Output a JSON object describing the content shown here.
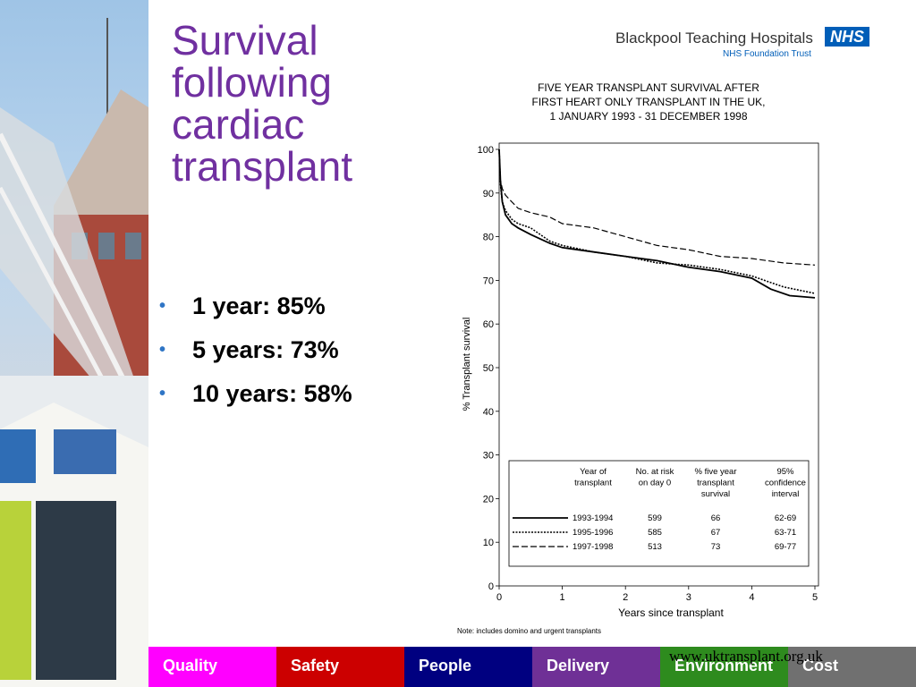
{
  "slide": {
    "title": "Survival following cardiac transplant",
    "bullets": [
      "1 year: 85%",
      "5 years: 73%",
      "10 years: 58%"
    ],
    "bullet_color": "#2f75c5",
    "title_color": "#7030a0"
  },
  "logo": {
    "org": "Blackpool Teaching Hospitals",
    "badge": "NHS",
    "trust": "NHS Foundation Trust",
    "badge_color": "#005eb8"
  },
  "chart_title_lines": [
    "FIVE YEAR TRANSPLANT SURVIVAL AFTER",
    "FIRST HEART ONLY TRANSPLANT IN THE UK,",
    "1 JANUARY 1993 - 31 DECEMBER 1998"
  ],
  "chart_note": "Note: includes domino and urgent transplants",
  "url": "www.uktransplant.org.uk",
  "footer": [
    {
      "label": "Quality",
      "color": "#ff00ff"
    },
    {
      "label": "Safety",
      "color": "#cc0000"
    },
    {
      "label": "People",
      "color": "#000080"
    },
    {
      "label": "Delivery",
      "color": "#6f3096"
    },
    {
      "label": "Environment",
      "color": "#2e8b1e"
    },
    {
      "label": "Cost",
      "color": "#707070"
    }
  ],
  "chart_data": {
    "type": "line",
    "xlabel": "Years since transplant",
    "ylabel": "% Transplant survival",
    "xlim": [
      0,
      5
    ],
    "ylim": [
      0,
      100
    ],
    "x_ticks": [
      "0",
      "1",
      "2",
      "3",
      "4",
      "5"
    ],
    "y_ticks": [
      "0",
      "10",
      "20",
      "30",
      "40",
      "50",
      "60",
      "70",
      "80",
      "90",
      "100"
    ],
    "legend_headers": [
      "Year of transplant",
      "No. at risk on day 0",
      "% five year transplant survival",
      "95% confidence interval"
    ],
    "legend_position": "bottom",
    "series": [
      {
        "name": "1993-1994",
        "at_risk": "599",
        "survival": "66",
        "ci": "62-69",
        "dash": "solid",
        "x": [
          0,
          0.02,
          0.05,
          0.1,
          0.2,
          0.3,
          0.5,
          0.8,
          1.0,
          1.5,
          2.0,
          2.5,
          3.0,
          3.5,
          4.0,
          4.3,
          4.6,
          5.0
        ],
        "y": [
          100,
          93,
          88,
          85,
          83,
          82,
          80.5,
          78.5,
          77.5,
          76.5,
          75.5,
          74.5,
          73,
          72,
          70.5,
          68,
          66.5,
          66
        ]
      },
      {
        "name": "1995-1996",
        "at_risk": "585",
        "survival": "67",
        "ci": "63-71",
        "dash": "dotted",
        "x": [
          0,
          0.02,
          0.05,
          0.1,
          0.2,
          0.3,
          0.5,
          0.8,
          1.0,
          1.5,
          2.0,
          2.5,
          3.0,
          3.5,
          4.0,
          4.5,
          5.0
        ],
        "y": [
          100,
          92,
          88,
          86,
          84,
          83,
          82,
          79,
          78,
          76.5,
          75.5,
          74,
          73.5,
          72.5,
          71,
          68.5,
          67
        ]
      },
      {
        "name": "1997-1998",
        "at_risk": "513",
        "survival": "73",
        "ci": "69-77",
        "dash": "dashed",
        "x": [
          0,
          0.02,
          0.05,
          0.1,
          0.2,
          0.3,
          0.5,
          0.8,
          1.0,
          1.5,
          2.0,
          2.5,
          3.0,
          3.5,
          4.0,
          4.5,
          5.0
        ],
        "y": [
          100,
          93,
          91,
          89.5,
          88,
          86.5,
          85.5,
          84.5,
          83,
          82,
          80,
          78,
          77,
          75.5,
          75,
          74,
          73.5
        ]
      }
    ]
  }
}
